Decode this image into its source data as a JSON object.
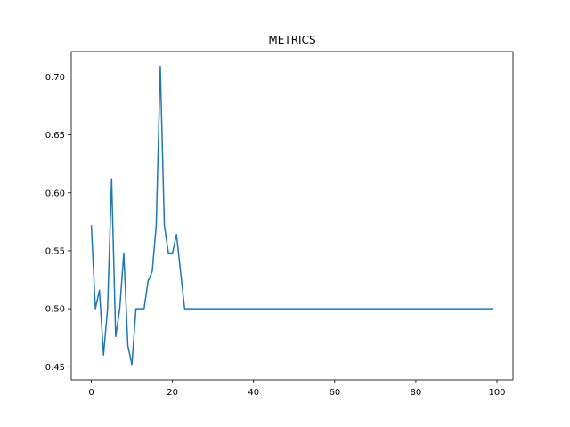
{
  "chart_data": {
    "type": "line",
    "title": "METRICS",
    "xlabel": "",
    "ylabel": "",
    "xlim": [
      -4.95,
      103.95
    ],
    "ylim": [
      0.4387,
      0.7218
    ],
    "x_ticks": [
      0,
      20,
      40,
      60,
      80,
      100
    ],
    "y_ticks": [
      0.45,
      0.5,
      0.55,
      0.6,
      0.65,
      0.7
    ],
    "x_tick_labels": [
      "0",
      "20",
      "40",
      "60",
      "80",
      "100"
    ],
    "y_tick_labels": [
      "0.45",
      "0.50",
      "0.55",
      "0.60",
      "0.65",
      "0.70"
    ],
    "grid": false,
    "series_color": "#1f77b4",
    "series": [
      {
        "x": [
          0,
          1,
          2,
          3,
          4,
          5,
          6,
          7,
          8,
          9,
          10,
          11,
          12,
          13,
          14,
          15,
          16,
          17,
          18,
          19,
          20,
          21,
          22,
          23,
          24,
          25,
          26,
          27,
          28,
          29,
          30,
          31,
          32,
          33,
          34,
          35,
          36,
          37,
          38,
          39,
          40,
          41,
          42,
          43,
          44,
          45,
          46,
          47,
          48,
          49,
          50,
          51,
          52,
          53,
          54,
          55,
          56,
          57,
          58,
          59,
          60,
          61,
          62,
          63,
          64,
          65,
          66,
          67,
          68,
          69,
          70,
          71,
          72,
          73,
          74,
          75,
          76,
          77,
          78,
          79,
          80,
          81,
          82,
          83,
          84,
          85,
          86,
          87,
          88,
          89,
          90,
          91,
          92,
          93,
          94,
          95,
          96,
          97,
          98,
          99
        ],
        "y": [
          0.572,
          0.5,
          0.516,
          0.46,
          0.5,
          0.612,
          0.476,
          0.5,
          0.548,
          0.468,
          0.452,
          0.5,
          0.5,
          0.5,
          0.524,
          0.532,
          0.572,
          0.709,
          0.572,
          0.548,
          0.548,
          0.564,
          0.532,
          0.5,
          0.5,
          0.5,
          0.5,
          0.5,
          0.5,
          0.5,
          0.5,
          0.5,
          0.5,
          0.5,
          0.5,
          0.5,
          0.5,
          0.5,
          0.5,
          0.5,
          0.5,
          0.5,
          0.5,
          0.5,
          0.5,
          0.5,
          0.5,
          0.5,
          0.5,
          0.5,
          0.5,
          0.5,
          0.5,
          0.5,
          0.5,
          0.5,
          0.5,
          0.5,
          0.5,
          0.5,
          0.5,
          0.5,
          0.5,
          0.5,
          0.5,
          0.5,
          0.5,
          0.5,
          0.5,
          0.5,
          0.5,
          0.5,
          0.5,
          0.5,
          0.5,
          0.5,
          0.5,
          0.5,
          0.5,
          0.5,
          0.5,
          0.5,
          0.5,
          0.5,
          0.5,
          0.5,
          0.5,
          0.5,
          0.5,
          0.5,
          0.5,
          0.5,
          0.5,
          0.5,
          0.5,
          0.5,
          0.5,
          0.5,
          0.5,
          0.5
        ]
      }
    ]
  }
}
